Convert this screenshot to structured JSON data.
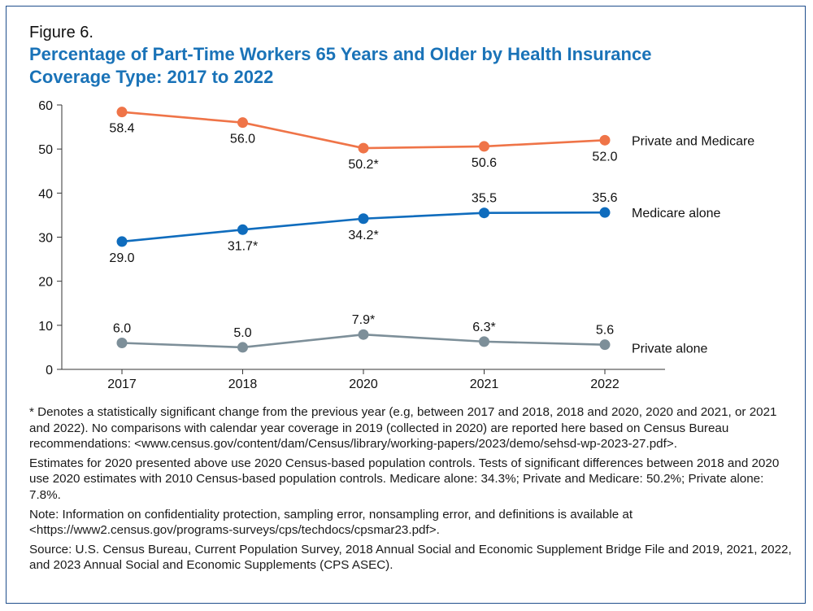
{
  "figure_label": "Figure 6.",
  "title_lines": [
    "Percentage of Part-Time Workers 65 Years and Older by Health Insurance",
    "Coverage Type: 2017 to 2022"
  ],
  "colors": {
    "frame": "#1f4e8c",
    "title": "#1a73b8",
    "private_and_medicare": "#ef7448",
    "medicare_alone": "#0f6cbd",
    "private_alone": "#7d8f99",
    "axis": "#333333"
  },
  "chart_data": {
    "type": "line",
    "categories": [
      "2017",
      "2018",
      "2020",
      "2021",
      "2022"
    ],
    "ylim": [
      0,
      60
    ],
    "yticks": [
      "0",
      "10",
      "20",
      "30",
      "40",
      "50",
      "60"
    ],
    "grid": false,
    "series": [
      {
        "name": "Private and Medicare",
        "values": [
          58.4,
          56.0,
          50.2,
          50.6,
          52.0
        ],
        "labels": [
          "58.4",
          "56.0",
          "50.2*",
          "50.6",
          "52.0"
        ],
        "color": "#ef7448"
      },
      {
        "name": "Medicare alone",
        "values": [
          29.0,
          31.7,
          34.2,
          35.5,
          35.6
        ],
        "labels": [
          "29.0",
          "31.7*",
          "34.2*",
          "35.5",
          "35.6"
        ],
        "color": "#0f6cbd"
      },
      {
        "name": "Private alone",
        "values": [
          6.0,
          5.0,
          7.9,
          6.3,
          5.6
        ],
        "labels": [
          "6.0",
          "5.0",
          "7.9*",
          "6.3*",
          "5.6"
        ],
        "color": "#7d8f99"
      }
    ]
  },
  "notes": [
    "* Denotes a statistically significant change from the previous year (e.g, between 2017 and 2018, 2018 and 2020, 2020 and 2021, or 2021 and 2022). No comparisons with calendar year coverage in 2019 (collected in 2020) are reported here based on Census Bureau recommendations: <www.census.gov/content/dam/Census/library/working-papers/2023/demo/sehsd-wp-2023-27.pdf>.",
    "Estimates for 2020 presented above use 2020 Census-based population controls. Tests of significant differences between 2018 and 2020 use 2020 estimates with 2010 Census-based population controls. Medicare alone: 34.3%; Private and Medicare: 50.2%; Private alone: 7.8%.",
    "Note: Information on confidentiality protection, sampling error, nonsampling error, and definitions is available at <https://www2.census.gov/programs-surveys/cps/techdocs/cpsmar23.pdf>.",
    "Source: U.S. Census Bureau, Current Population Survey, 2018 Annual Social and Economic Supplement Bridge File and 2019, 2021, 2022, and 2023 Annual Social and Economic Supplements (CPS ASEC)."
  ]
}
